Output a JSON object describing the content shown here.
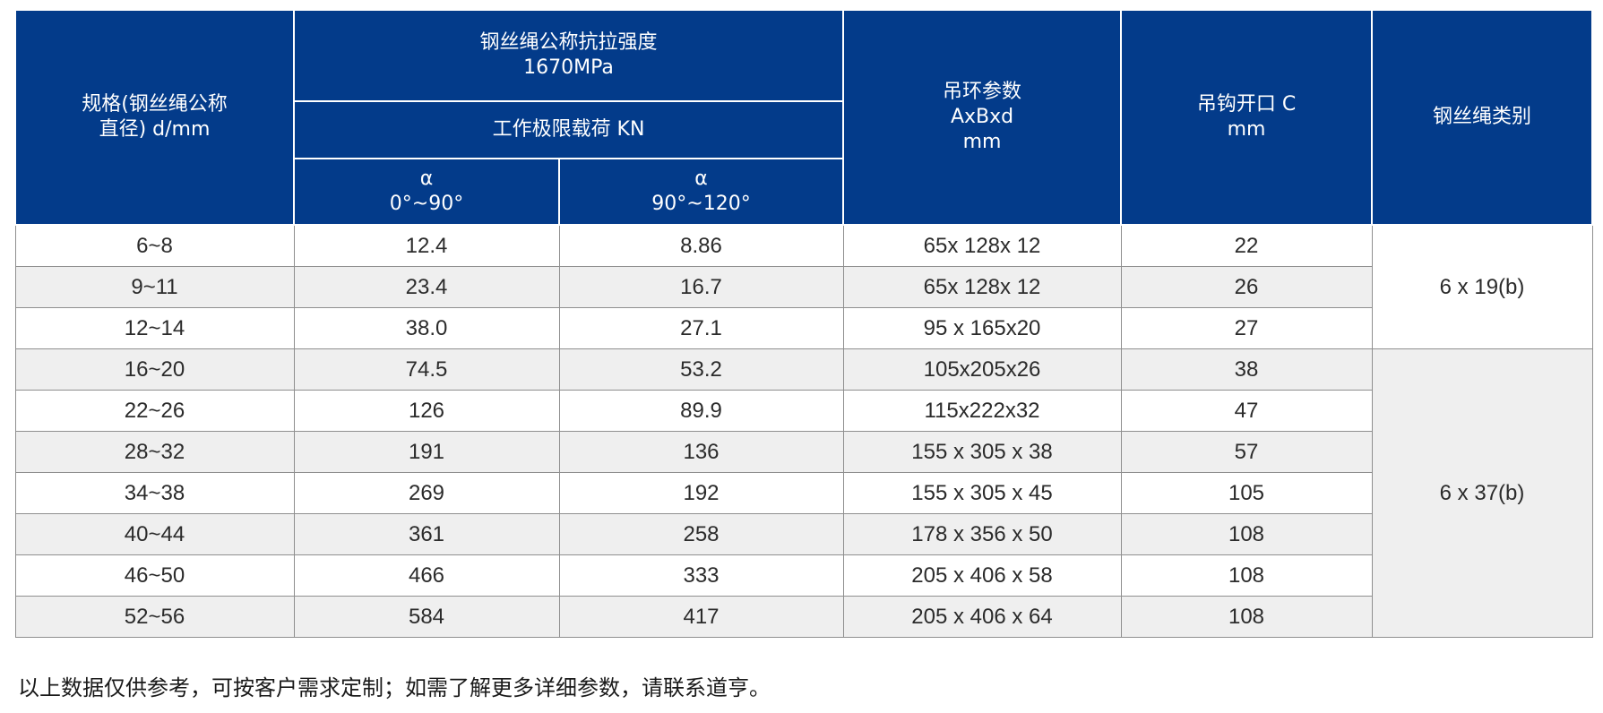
{
  "table": {
    "headers": {
      "spec": "规格(钢丝绳公称\n直径) d/mm",
      "strength": "钢丝绳公称抗拉强度\n1670MPa",
      "load": "工作极限载荷     KN",
      "alpha1": "α\n0°~90°",
      "alpha2": "α\n90°~120°",
      "ring": "吊环参数\nAxBxd\nmm",
      "hook": "吊钩开口 C\nmm",
      "category": "钢丝绳类别"
    },
    "rows": [
      {
        "spec": "6~8",
        "a1": "12.4",
        "a2": "8.86",
        "ring": "65x 128x 12",
        "hook": "22"
      },
      {
        "spec": "9~11",
        "a1": "23.4",
        "a2": "16.7",
        "ring": "65x 128x 12",
        "hook": "26"
      },
      {
        "spec": "12~14",
        "a1": "38.0",
        "a2": "27.1",
        "ring": "95 x 165x20",
        "hook": "27"
      },
      {
        "spec": "16~20",
        "a1": "74.5",
        "a2": "53.2",
        "ring": "105x205x26",
        "hook": "38"
      },
      {
        "spec": "22~26",
        "a1": "126",
        "a2": "89.9",
        "ring": "115x222x32",
        "hook": "47"
      },
      {
        "spec": "28~32",
        "a1": "191",
        "a2": "136",
        "ring": "155 x 305 x 38",
        "hook": "57"
      },
      {
        "spec": "34~38",
        "a1": "269",
        "a2": "192",
        "ring": "155 x 305 x 45",
        "hook": "105"
      },
      {
        "spec": "40~44",
        "a1": "361",
        "a2": "258",
        "ring": "178 x 356 x 50",
        "hook": "108"
      },
      {
        "spec": "46~50",
        "a1": "466",
        "a2": "333",
        "ring": "205 x 406 x 58",
        "hook": "108"
      },
      {
        "spec": "52~56",
        "a1": "584",
        "a2": "417",
        "ring": "205 x 406 x 64",
        "hook": "108"
      }
    ],
    "categories": [
      {
        "label": "6 x 19(b)"
      },
      {
        "label": "6 x 37(b)"
      }
    ]
  },
  "note": "以上数据仅供参考，可按客户需求定制；如需了解更多详细参数，请联系道亨。",
  "colors": {
    "header_bg": "#033b8a",
    "header_text": "#ffffff",
    "row_alt": "#efefef"
  }
}
